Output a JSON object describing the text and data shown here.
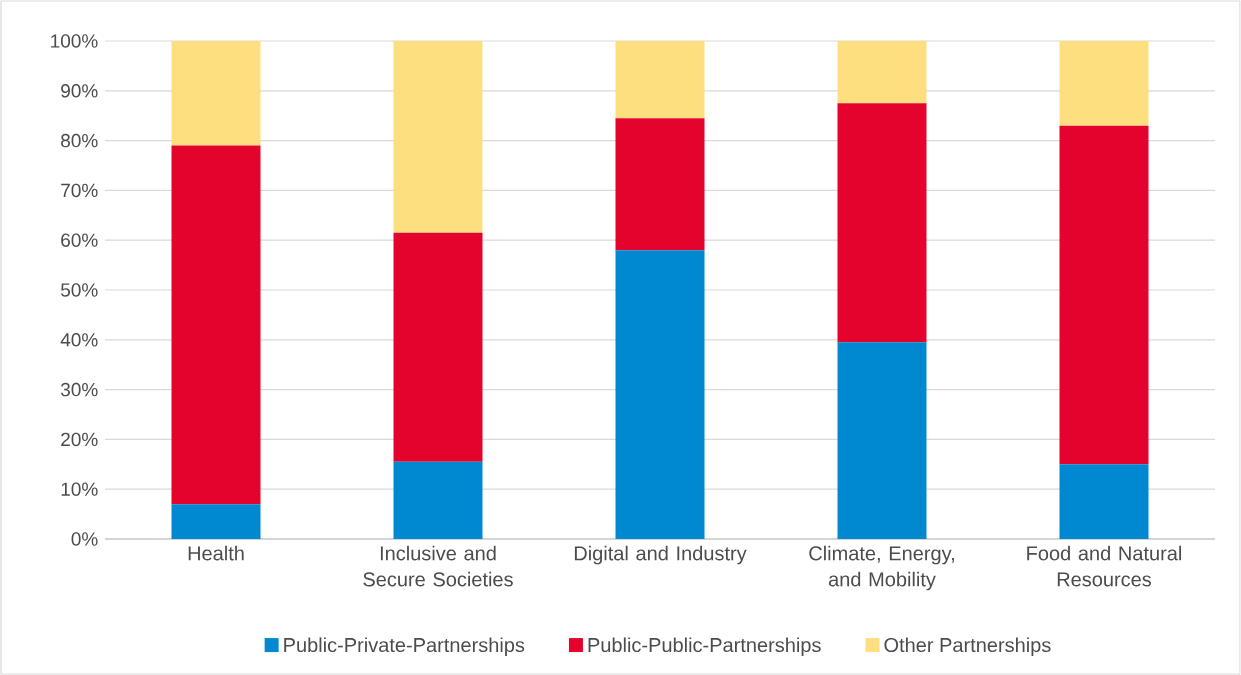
{
  "chart_data": {
    "type": "bar",
    "stacked": true,
    "categories": [
      "Health",
      "Inclusive and Secure Societies",
      "Digital and Industry",
      "Climate, Energy, and Mobility",
      "Food and Natural Resources"
    ],
    "series": [
      {
        "name": "Public-Private-Partnerships",
        "color": "#0088d1",
        "values": [
          7,
          15.5,
          58,
          39.5,
          15
        ]
      },
      {
        "name": "Public-Public-Partnerships",
        "color": "#e4032c",
        "values": [
          72,
          46,
          26.5,
          48,
          68
        ]
      },
      {
        "name": "Other Partnerships",
        "color": "#fddf80",
        "values": [
          21,
          38.5,
          15.5,
          12.5,
          17
        ]
      }
    ],
    "ylim": [
      0,
      100
    ],
    "yticks": [
      {
        "value": 0,
        "label": "0%"
      },
      {
        "value": 10,
        "label": "10%"
      },
      {
        "value": 20,
        "label": "20%"
      },
      {
        "value": 30,
        "label": "30%"
      },
      {
        "value": 40,
        "label": "40%"
      },
      {
        "value": 50,
        "label": "50%"
      },
      {
        "value": 60,
        "label": "60%"
      },
      {
        "value": 70,
        "label": "70%"
      },
      {
        "value": 80,
        "label": "80%"
      },
      {
        "value": 90,
        "label": "90%"
      },
      {
        "value": 100,
        "label": "100%"
      }
    ],
    "grid": "y",
    "legend": "bottom"
  }
}
